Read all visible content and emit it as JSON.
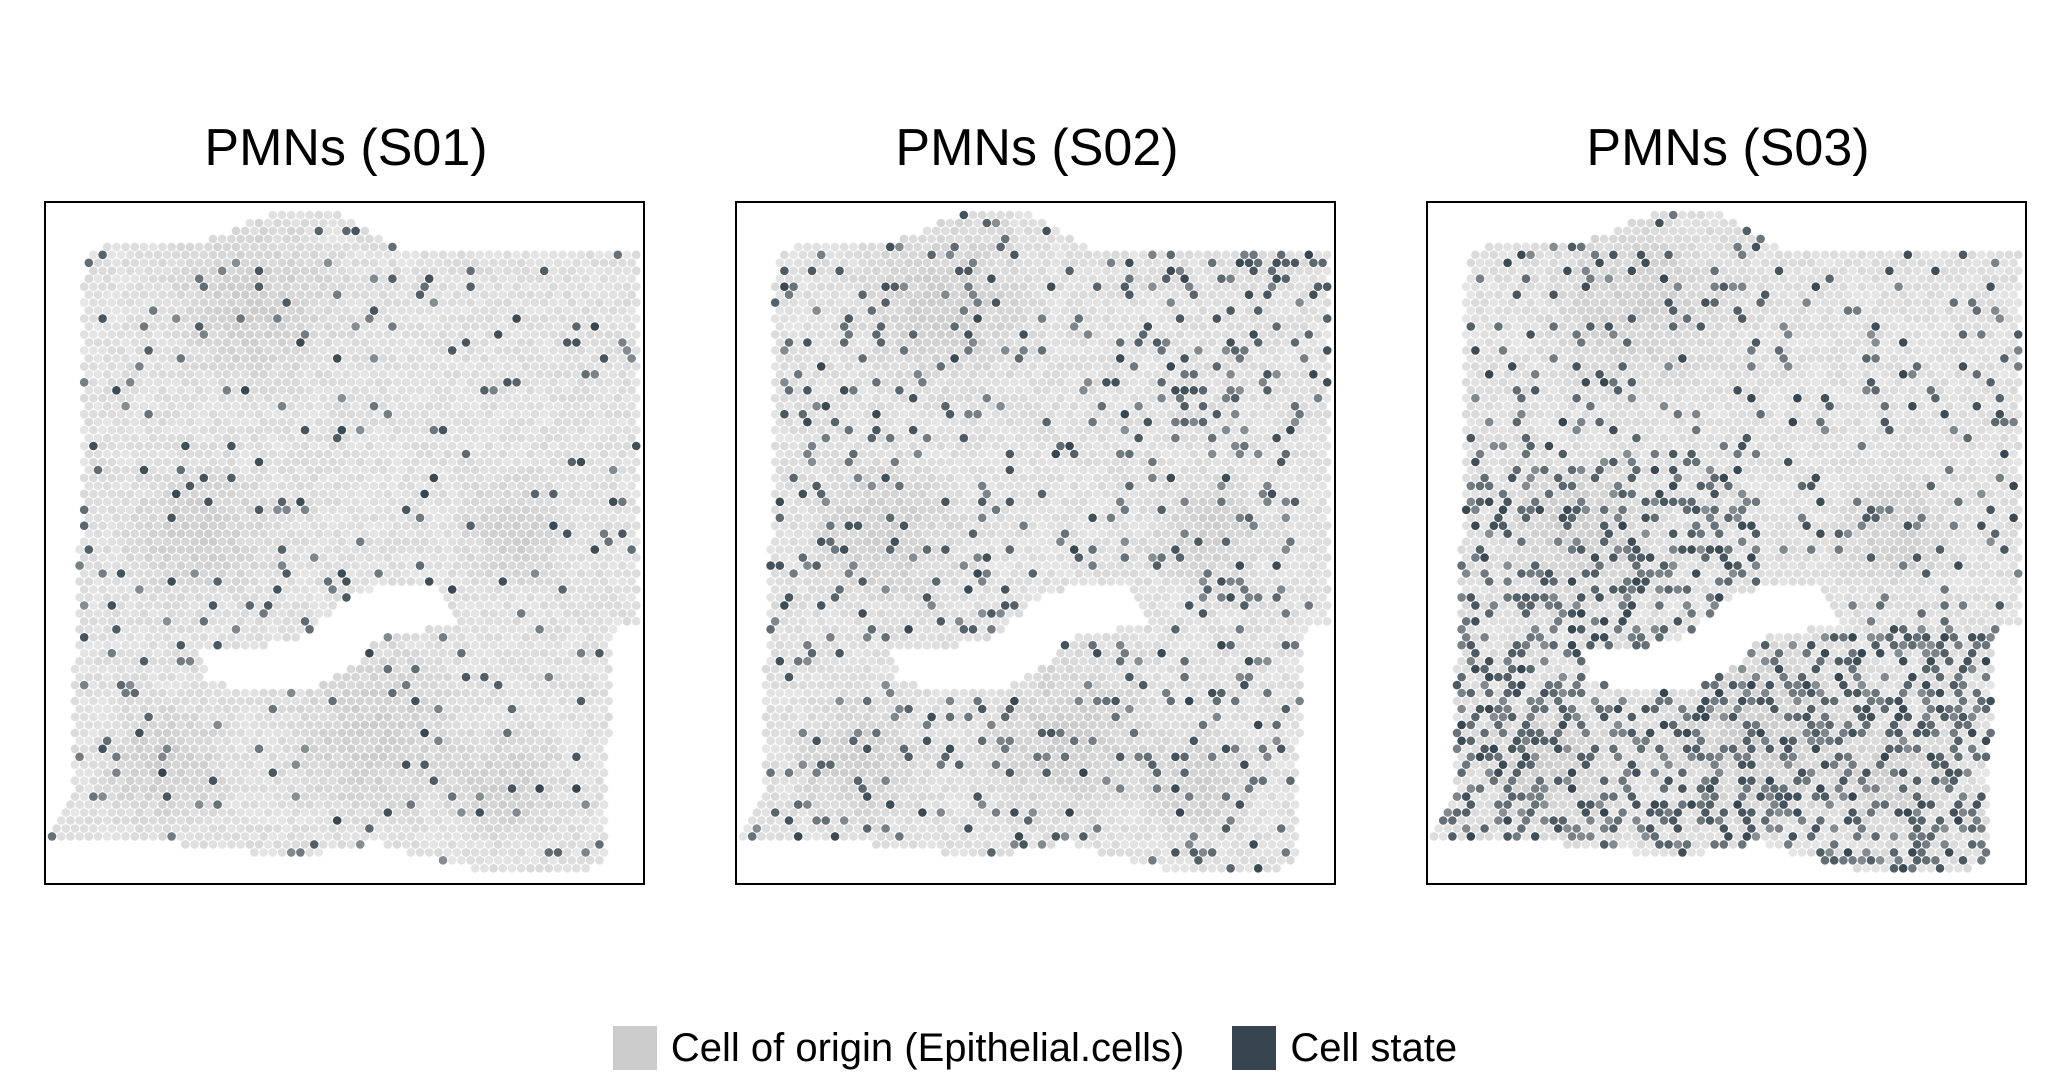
{
  "chart_data": {
    "type": "scatter",
    "description_kind": "spatial spot map (hexagonal grid)",
    "panels": [
      {
        "title": "PMNs (S01)",
        "state_fraction": 0.05
      },
      {
        "title": "PMNs (S02)",
        "state_fraction": 0.12
      },
      {
        "title": "PMNs (S03)",
        "state_fraction": 0.22
      }
    ],
    "legend": {
      "position": "bottom",
      "items": [
        {
          "label": "Cell of origin (Epithelial.cells)",
          "color": "#cccccc"
        },
        {
          "label": "Cell state",
          "color": "#36454f"
        }
      ]
    },
    "grid": false,
    "axes": "none"
  }
}
